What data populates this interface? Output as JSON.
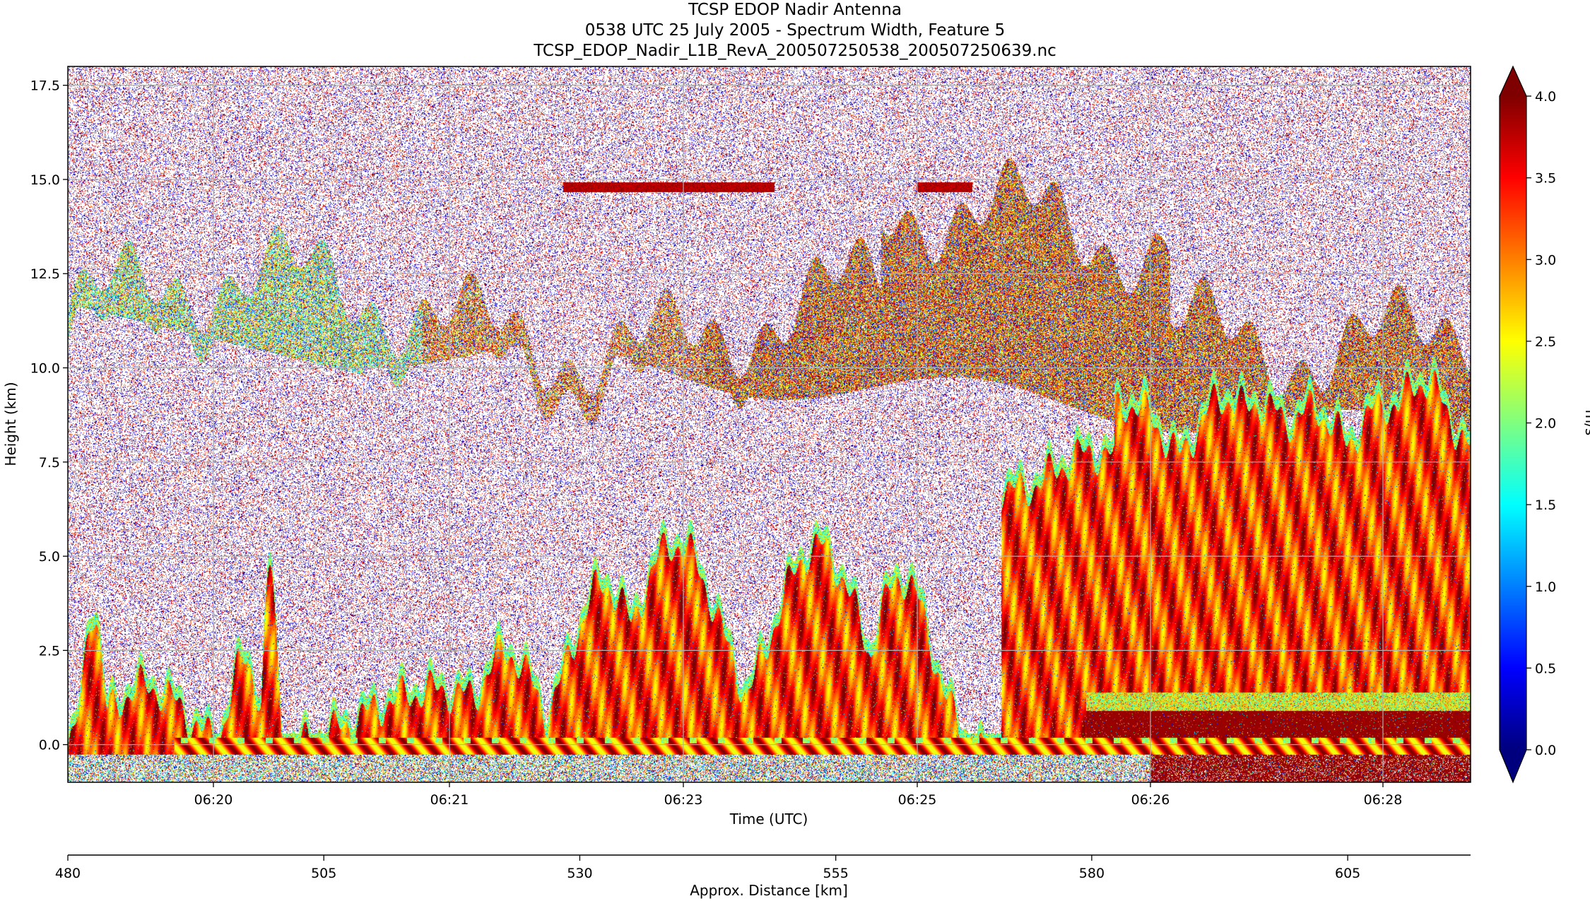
{
  "chart_data": {
    "type": "heatmap",
    "title": "TCSP EDOP Nadir Antenna",
    "subtitle": "0538 UTC 25 July 2005 - Spectrum Width, Feature 5",
    "file_name": "TCSP_EDOP_Nadir_L1B_RevA_200507250538_200507250639.nc",
    "xlabel": "Time (UTC)",
    "ylabel": "Height (km)",
    "secondary_xlabel": "Approx. Distance [km]",
    "x_tick_labels": [
      "06:20",
      "06:21",
      "06:23",
      "06:25",
      "06:26",
      "06:28"
    ],
    "y_ticks": [
      0.0,
      2.5,
      5.0,
      7.5,
      10.0,
      12.5,
      15.0,
      17.5
    ],
    "y_tick_labels": [
      "0.0",
      "2.5",
      "5.0",
      "7.5",
      "10.0",
      "12.5",
      "15.0",
      "17.5"
    ],
    "ylim": [
      -1.0,
      18.0
    ],
    "distance_ticks": [
      480,
      505,
      530,
      555,
      580,
      605
    ],
    "distance_tick_labels": [
      "480",
      "505",
      "530",
      "555",
      "580",
      "605"
    ],
    "distance_range": [
      480,
      617
    ],
    "colorbar": {
      "label": "m/s",
      "range": [
        0.0,
        4.0
      ],
      "ticks": [
        "0.0",
        "0.5",
        "1.0",
        "1.5",
        "2.0",
        "2.5",
        "3.0",
        "3.5",
        "4.0"
      ],
      "colormap": "jet",
      "extend": "both"
    },
    "grid": true,
    "features": {
      "surface_height_km": 0.0,
      "upper_cloud_layer_km": [
        9.5,
        14.5
      ],
      "convective_region_max_height_km": 10.0,
      "thin_layer_km": 14.8
    }
  },
  "colors": {
    "jet": [
      "#00007f",
      "#0000ff",
      "#007fff",
      "#00ffff",
      "#7fff7f",
      "#ffff00",
      "#ff7f00",
      "#ff0000",
      "#7f0000"
    ],
    "under": "#00007f",
    "over": "#7f0000"
  }
}
